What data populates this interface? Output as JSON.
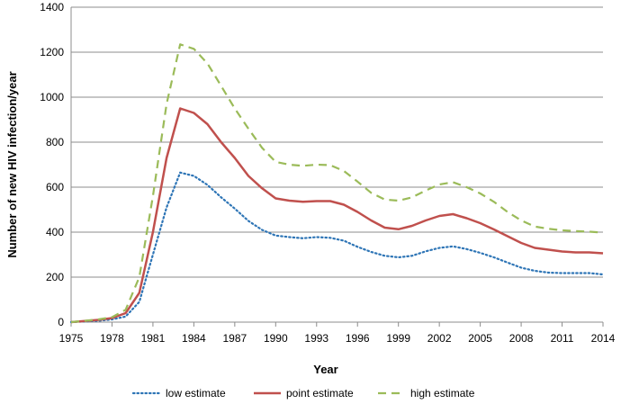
{
  "chart_data": {
    "type": "line",
    "title": "",
    "xlabel": "Year",
    "ylabel": "Number of new HIV infection/year",
    "xlim": [
      1975,
      2014
    ],
    "ylim": [
      0,
      1400
    ],
    "x_ticks": [
      1975,
      1978,
      1981,
      1984,
      1987,
      1990,
      1993,
      1996,
      1999,
      2002,
      2005,
      2008,
      2011,
      2014
    ],
    "y_ticks": [
      0,
      200,
      400,
      600,
      800,
      1000,
      1200,
      1400
    ],
    "grid": "horizontal",
    "legend_position": "bottom",
    "x": [
      1975,
      1976,
      1977,
      1978,
      1979,
      1980,
      1981,
      1982,
      1983,
      1984,
      1985,
      1986,
      1987,
      1988,
      1989,
      1990,
      1991,
      1992,
      1993,
      1994,
      1995,
      1996,
      1997,
      1998,
      1999,
      2000,
      2001,
      2002,
      2003,
      2004,
      2005,
      2006,
      2007,
      2008,
      2009,
      2010,
      2011,
      2012,
      2013,
      2014
    ],
    "series": [
      {
        "name": "low estimate",
        "color": "#2e75b6",
        "dash": "dotted",
        "values": [
          0,
          3,
          6,
          12,
          25,
          90,
          300,
          510,
          665,
          650,
          610,
          555,
          505,
          450,
          410,
          385,
          378,
          373,
          378,
          375,
          362,
          335,
          312,
          295,
          288,
          295,
          315,
          330,
          337,
          325,
          308,
          288,
          265,
          242,
          228,
          220,
          218,
          218,
          218,
          212
        ]
      },
      {
        "name": "point estimate",
        "color": "#c0504d",
        "dash": "solid",
        "values": [
          0,
          5,
          10,
          18,
          40,
          130,
          400,
          730,
          950,
          930,
          880,
          800,
          730,
          650,
          595,
          550,
          540,
          535,
          538,
          538,
          522,
          490,
          452,
          420,
          413,
          428,
          452,
          472,
          480,
          462,
          440,
          412,
          382,
          352,
          330,
          322,
          314,
          310,
          310,
          306
        ]
      },
      {
        "name": "high estimate",
        "color": "#9bbb59",
        "dash": "dashed",
        "values": [
          0,
          6,
          12,
          22,
          55,
          200,
          560,
          970,
          1235,
          1215,
          1150,
          1050,
          950,
          860,
          775,
          712,
          700,
          695,
          700,
          698,
          672,
          625,
          575,
          545,
          540,
          555,
          585,
          612,
          622,
          600,
          572,
          535,
          490,
          452,
          425,
          415,
          408,
          405,
          402,
          398
        ]
      }
    ]
  }
}
